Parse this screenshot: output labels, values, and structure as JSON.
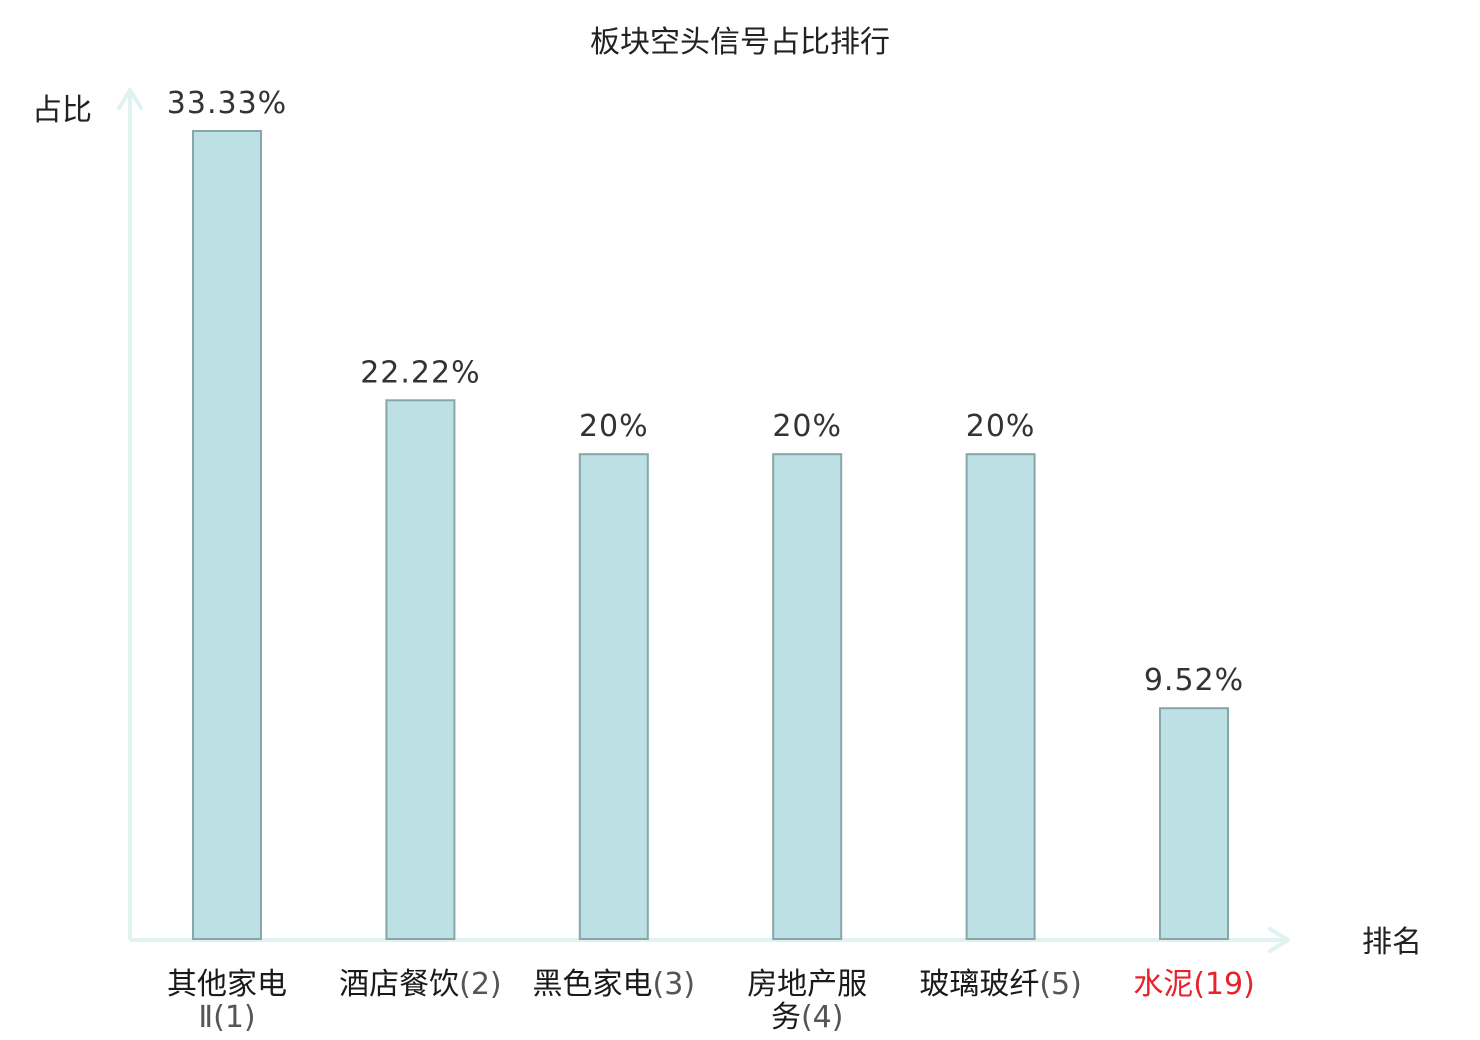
{
  "chart_data": {
    "type": "bar",
    "title": "板块空头信号占比排行",
    "xlabel": "排名",
    "ylabel": "占比",
    "categories": [
      {
        "lines": [
          [
            {
              "t": "其他家电"
            }
          ],
          [
            {
              "t": "Ⅱ(1)",
              "c": "num"
            }
          ]
        ]
      },
      {
        "lines": [
          [
            {
              "t": "酒店餐饮"
            },
            {
              "t": "(2)",
              "c": "num"
            }
          ]
        ]
      },
      {
        "lines": [
          [
            {
              "t": "黑色家电"
            },
            {
              "t": "(3)",
              "c": "num"
            }
          ]
        ]
      },
      {
        "lines": [
          [
            {
              "t": "房地产服"
            }
          ],
          [
            {
              "t": "务"
            },
            {
              "t": "(4)",
              "c": "num"
            }
          ]
        ]
      },
      {
        "lines": [
          [
            {
              "t": "玻璃玻纤"
            },
            {
              "t": "(5)",
              "c": "num"
            }
          ]
        ]
      },
      {
        "lines": [
          [
            {
              "t": "水泥(19)",
              "c": "highlight"
            }
          ]
        ]
      }
    ],
    "values": [
      33.33,
      22.22,
      20,
      20,
      20,
      9.52
    ],
    "value_labels": [
      "33.33%",
      "22.22%",
      "20%",
      "20%",
      "20%",
      "9.52%"
    ],
    "ylim": [
      0,
      33.33
    ],
    "grid": false,
    "colors": {
      "bar_fill": "#bce0e3",
      "bar_stroke": "#86a6aa",
      "axis": "#dff3f0",
      "highlight": "#e8222a"
    }
  }
}
